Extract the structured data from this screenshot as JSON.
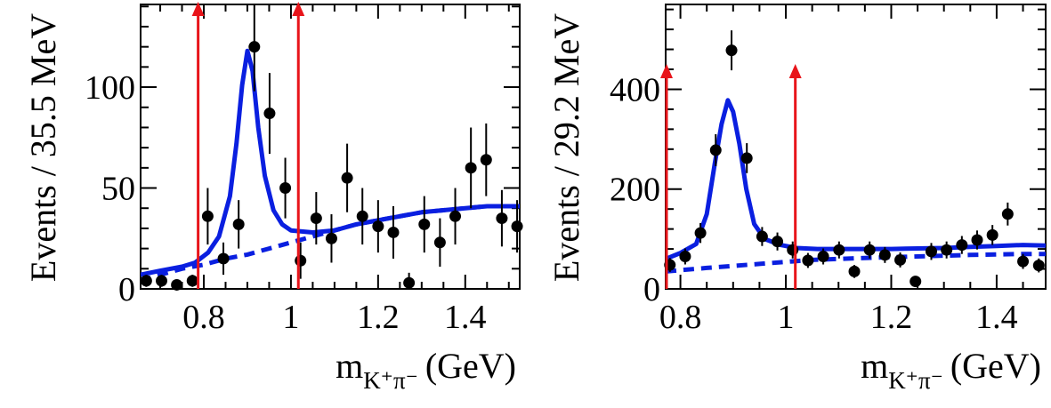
{
  "chart_data": [
    {
      "type": "scatter",
      "xlabel_main": "m",
      "xlabel_sub": "K⁺π⁻",
      "xlabel_unit": "(GeV)",
      "ylabel": "Events / 35.5 MeV",
      "xlim": [
        0.655,
        1.525
      ],
      "ylim": [
        0,
        141
      ],
      "xticks": [
        0.8,
        1,
        1.2,
        1.4
      ],
      "xtick_labels": [
        "0.8",
        "1",
        "1.2",
        "1.4"
      ],
      "yticks": [
        0,
        50,
        100
      ],
      "ytick_labels": [
        "0",
        "50",
        "100"
      ],
      "points": [
        {
          "x": 0.668,
          "y": 4,
          "err": 3
        },
        {
          "x": 0.703,
          "y": 4,
          "err": 3
        },
        {
          "x": 0.738,
          "y": 2,
          "err": 2
        },
        {
          "x": 0.774,
          "y": 4,
          "err": 3
        },
        {
          "x": 0.809,
          "y": 36,
          "err": 14
        },
        {
          "x": 0.845,
          "y": 15,
          "err": 8
        },
        {
          "x": 0.88,
          "y": 32,
          "err": 12
        },
        {
          "x": 0.916,
          "y": 120,
          "err": 22
        },
        {
          "x": 0.951,
          "y": 87,
          "err": 20
        },
        {
          "x": 0.987,
          "y": 50,
          "err": 15
        },
        {
          "x": 1.022,
          "y": 14,
          "err": 9
        },
        {
          "x": 1.058,
          "y": 35,
          "err": 13
        },
        {
          "x": 1.093,
          "y": 25,
          "err": 12
        },
        {
          "x": 1.129,
          "y": 55,
          "err": 17
        },
        {
          "x": 1.164,
          "y": 36,
          "err": 14
        },
        {
          "x": 1.2,
          "y": 31,
          "err": 13
        },
        {
          "x": 1.235,
          "y": 28,
          "err": 13
        },
        {
          "x": 1.271,
          "y": 3,
          "err": 5
        },
        {
          "x": 1.306,
          "y": 32,
          "err": 14
        },
        {
          "x": 1.342,
          "y": 23,
          "err": 12
        },
        {
          "x": 1.377,
          "y": 36,
          "err": 14
        },
        {
          "x": 1.413,
          "y": 60,
          "err": 20
        },
        {
          "x": 1.448,
          "y": 64,
          "err": 18
        },
        {
          "x": 1.484,
          "y": 35,
          "err": 14
        },
        {
          "x": 1.519,
          "y": 31,
          "err": 13
        }
      ],
      "fit_total": [
        [
          0.655,
          7
        ],
        [
          0.7,
          9
        ],
        [
          0.75,
          11
        ],
        [
          0.78,
          13
        ],
        [
          0.81,
          18
        ],
        [
          0.835,
          26
        ],
        [
          0.86,
          46
        ],
        [
          0.875,
          72
        ],
        [
          0.888,
          101
        ],
        [
          0.9,
          118
        ],
        [
          0.912,
          108
        ],
        [
          0.925,
          80
        ],
        [
          0.94,
          56
        ],
        [
          0.96,
          39
        ],
        [
          0.98,
          32
        ],
        [
          1.0,
          29
        ],
        [
          1.05,
          28
        ],
        [
          1.1,
          29
        ],
        [
          1.15,
          32
        ],
        [
          1.2,
          34
        ],
        [
          1.25,
          36
        ],
        [
          1.3,
          38
        ],
        [
          1.35,
          39
        ],
        [
          1.4,
          40
        ],
        [
          1.45,
          41
        ],
        [
          1.5,
          41
        ],
        [
          1.525,
          41
        ]
      ],
      "fit_background": [
        [
          0.655,
          4
        ],
        [
          0.7,
          7
        ],
        [
          0.75,
          10
        ],
        [
          0.8,
          12
        ],
        [
          0.85,
          15
        ],
        [
          0.9,
          17
        ],
        [
          0.95,
          20
        ],
        [
          1.0,
          23
        ],
        [
          1.05,
          26
        ],
        [
          1.1,
          29
        ],
        [
          1.15,
          32
        ],
        [
          1.2,
          34
        ],
        [
          1.25,
          36
        ],
        [
          1.3,
          38
        ],
        [
          1.35,
          39
        ],
        [
          1.4,
          40
        ],
        [
          1.45,
          41
        ],
        [
          1.5,
          41
        ],
        [
          1.525,
          41
        ]
      ],
      "arrows": [
        0.787,
        1.017
      ]
    },
    {
      "type": "scatter",
      "xlabel_main": "m",
      "xlabel_sub": "K⁺π⁻",
      "xlabel_unit": "(GeV)",
      "ylabel": "Events / 29.2 MeV",
      "xlim": [
        0.772,
        1.493
      ],
      "ylim": [
        0,
        570
      ],
      "xticks": [
        0.8,
        1,
        1.2,
        1.4
      ],
      "xtick_labels": [
        "0.8",
        "1",
        "1.2",
        "1.4"
      ],
      "yticks": [
        0,
        200,
        400
      ],
      "ytick_labels": [
        "0",
        "200",
        "400"
      ],
      "points": [
        {
          "x": 0.78,
          "y": 48,
          "err": 14
        },
        {
          "x": 0.809,
          "y": 65,
          "err": 16
        },
        {
          "x": 0.838,
          "y": 112,
          "err": 20
        },
        {
          "x": 0.867,
          "y": 278,
          "err": 32
        },
        {
          "x": 0.897,
          "y": 478,
          "err": 40
        },
        {
          "x": 0.926,
          "y": 262,
          "err": 30
        },
        {
          "x": 0.955,
          "y": 105,
          "err": 19
        },
        {
          "x": 0.984,
          "y": 95,
          "err": 18
        },
        {
          "x": 1.013,
          "y": 78,
          "err": 17
        },
        {
          "x": 1.042,
          "y": 57,
          "err": 15
        },
        {
          "x": 1.071,
          "y": 65,
          "err": 16
        },
        {
          "x": 1.101,
          "y": 78,
          "err": 17
        },
        {
          "x": 1.13,
          "y": 35,
          "err": 13
        },
        {
          "x": 1.159,
          "y": 78,
          "err": 17
        },
        {
          "x": 1.188,
          "y": 68,
          "err": 16
        },
        {
          "x": 1.217,
          "y": 58,
          "err": 15
        },
        {
          "x": 1.246,
          "y": 15,
          "err": 10
        },
        {
          "x": 1.276,
          "y": 75,
          "err": 17
        },
        {
          "x": 1.305,
          "y": 78,
          "err": 17
        },
        {
          "x": 1.334,
          "y": 88,
          "err": 18
        },
        {
          "x": 1.363,
          "y": 98,
          "err": 19
        },
        {
          "x": 1.392,
          "y": 108,
          "err": 20
        },
        {
          "x": 1.421,
          "y": 150,
          "err": 23
        },
        {
          "x": 1.45,
          "y": 55,
          "err": 15
        },
        {
          "x": 1.48,
          "y": 47,
          "err": 14
        }
      ],
      "fit_total": [
        [
          0.772,
          60
        ],
        [
          0.8,
          72
        ],
        [
          0.83,
          90
        ],
        [
          0.85,
          150
        ],
        [
          0.865,
          250
        ],
        [
          0.878,
          330
        ],
        [
          0.89,
          378
        ],
        [
          0.9,
          355
        ],
        [
          0.912,
          290
        ],
        [
          0.925,
          200
        ],
        [
          0.94,
          130
        ],
        [
          0.96,
          100
        ],
        [
          0.99,
          88
        ],
        [
          1.02,
          82
        ],
        [
          1.06,
          80
        ],
        [
          1.1,
          80
        ],
        [
          1.15,
          80
        ],
        [
          1.2,
          80
        ],
        [
          1.25,
          81
        ],
        [
          1.3,
          82
        ],
        [
          1.35,
          84
        ],
        [
          1.4,
          86
        ],
        [
          1.45,
          88
        ],
        [
          1.493,
          87
        ]
      ],
      "fit_background": [
        [
          0.772,
          35
        ],
        [
          0.85,
          42
        ],
        [
          0.95,
          50
        ],
        [
          1.05,
          58
        ],
        [
          1.15,
          62
        ],
        [
          1.25,
          65
        ],
        [
          1.35,
          68
        ],
        [
          1.45,
          70
        ],
        [
          1.493,
          70
        ]
      ],
      "arrows": [
        0.772,
        1.018
      ]
    }
  ]
}
